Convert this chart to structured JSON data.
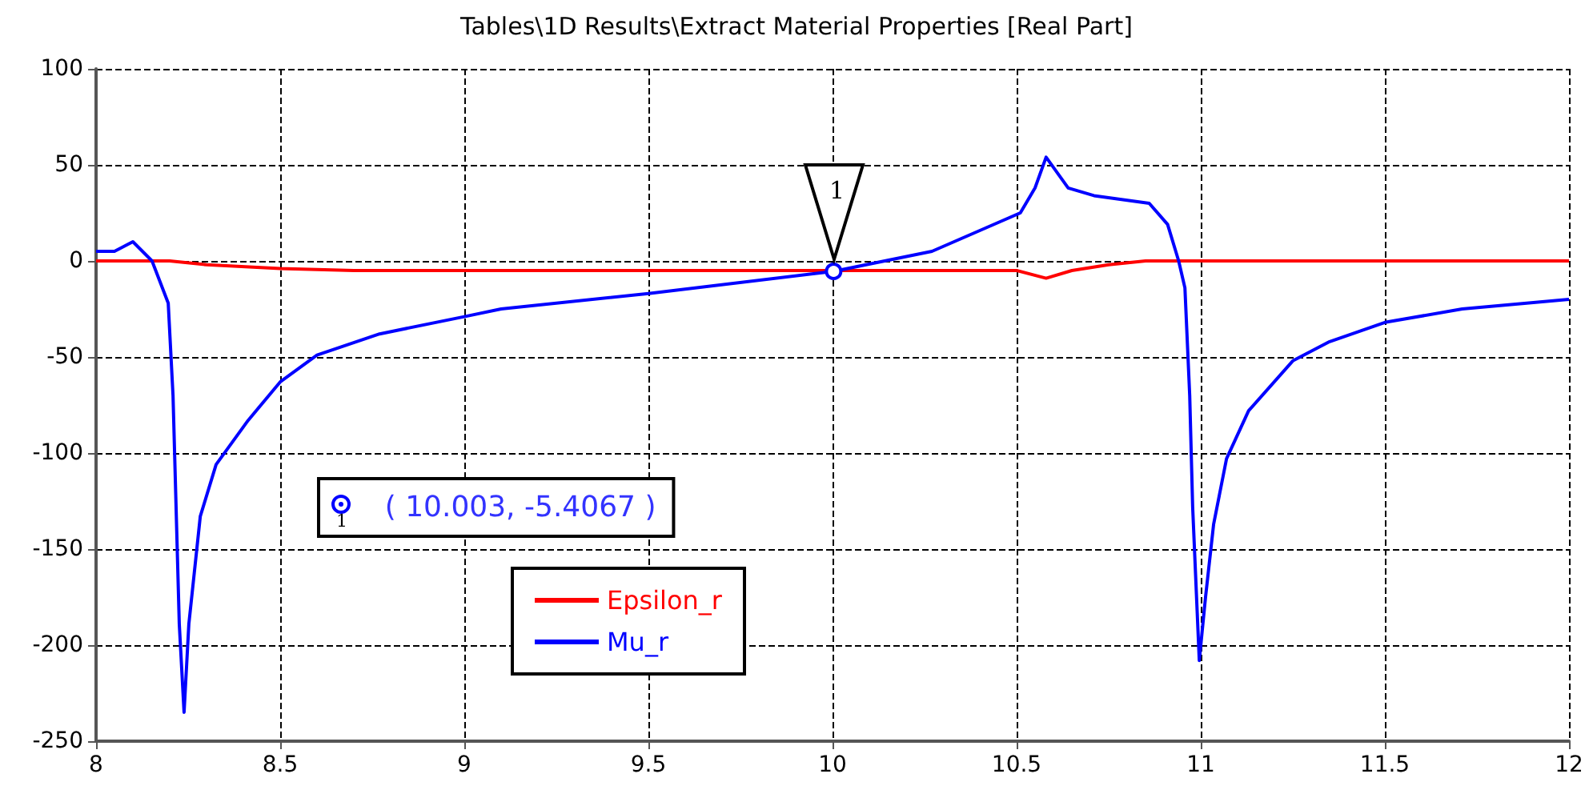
{
  "chart_data": {
    "type": "line",
    "title": "Tables\\1D Results\\Extract Material Properties [Real Part]",
    "xlim": [
      8,
      12
    ],
    "xticks": [
      8,
      8.5,
      9,
      9.5,
      10,
      10.5,
      11,
      11.5,
      12
    ],
    "ylim": [
      -250,
      100
    ],
    "yticks": [
      -250,
      -200,
      -150,
      -100,
      -50,
      0,
      50,
      100
    ],
    "grid": true,
    "legend": "bottom left",
    "marker": "none",
    "line_style": "solid",
    "annotations": [
      {
        "text": "1",
        "x": 10.003,
        "y": -5.4067
      },
      "( 10.003, -5.4067 )"
    ],
    "series": [
      {
        "name": "Epsilon_r",
        "color": "#ff0000",
        "x": [
          8,
          8.2,
          8.3,
          8.5,
          8.7,
          9,
          9.5,
          10.5,
          10.58,
          10.65,
          10.75,
          10.85,
          11,
          11.5,
          12
        ],
        "values": [
          0,
          0,
          -2,
          -4,
          -5,
          -5,
          -5,
          -5,
          -9,
          -5,
          -2,
          0,
          0,
          0,
          0
        ]
      },
      {
        "name": "Mu_r",
        "color": "#0000ff",
        "x": [
          8,
          8.05,
          8.1,
          8.152,
          8.196,
          8.209,
          8.226,
          8.239,
          8.252,
          8.283,
          8.326,
          8.413,
          8.5,
          8.6,
          8.77,
          9,
          9.1,
          9.5,
          10.003,
          10.27,
          10.42,
          10.51,
          10.55,
          10.58,
          10.64,
          10.71,
          10.86,
          10.91,
          10.94,
          10.957,
          10.97,
          10.978,
          10.996,
          11.013,
          11.035,
          11.07,
          11.13,
          11.25,
          11.35,
          11.5,
          11.71,
          12
        ],
        "values": [
          5,
          5,
          10,
          0,
          -22,
          -70,
          -189,
          -235,
          -189,
          -133,
          -106,
          -83,
          -63,
          -49,
          -38,
          -29,
          -25,
          -17,
          -5.4,
          5,
          17.5,
          25,
          38,
          54,
          38,
          34,
          30,
          19,
          0,
          -14,
          -70,
          -128,
          -208,
          -175,
          -137,
          -103,
          -78,
          -52,
          -42,
          -32,
          -25,
          -20
        ]
      }
    ]
  }
}
